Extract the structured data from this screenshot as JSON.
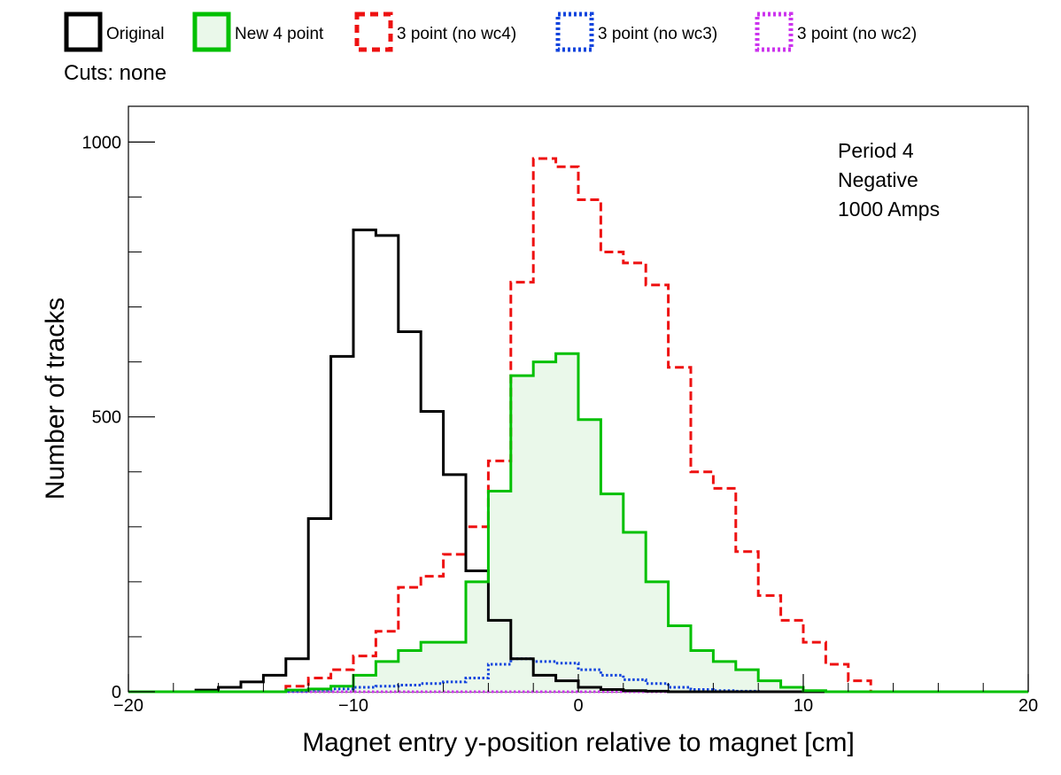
{
  "chart_data": {
    "type": "histogram",
    "xlabel": "Magnet entry y-position relative to magnet [cm]",
    "ylabel": "Number of tracks",
    "xlim": [
      -20,
      20
    ],
    "ylim": [
      0,
      1065
    ],
    "x_ticks": [
      -20,
      -10,
      0,
      10,
      20
    ],
    "x_tick_labels": [
      "−20",
      "−10",
      "0",
      "10",
      "20"
    ],
    "y_ticks": [
      0,
      500,
      1000
    ],
    "y_tick_labels": [
      "0",
      "500",
      "1000"
    ],
    "cuts_text": "Cuts: none",
    "annotation": [
      "Period 4",
      "Negative",
      "1000 Amps"
    ],
    "legend_placement": "top",
    "bin_edges": [
      -17,
      -16,
      -15,
      -14,
      -13,
      -12,
      -11,
      -10,
      -9,
      -8,
      -7,
      -6,
      -5,
      -4,
      -3,
      -2,
      -1,
      0,
      1,
      2,
      3,
      4,
      5,
      6,
      7,
      8,
      9,
      10,
      11,
      12,
      13,
      14
    ],
    "series": [
      {
        "name": "Original",
        "color": "#000000",
        "dash": "solid",
        "fill": "none",
        "values": [
          3,
          8,
          18,
          30,
          60,
          315,
          610,
          840,
          830,
          655,
          510,
          395,
          220,
          130,
          60,
          30,
          20,
          8,
          4,
          2,
          1,
          0,
          0,
          0,
          0,
          0,
          0,
          0,
          0,
          0,
          0
        ]
      },
      {
        "name": "New 4 point",
        "color": "#00c000",
        "dash": "solid",
        "fill": "#eaf8ea",
        "values": [
          0,
          0,
          0,
          0,
          3,
          5,
          10,
          30,
          55,
          75,
          90,
          90,
          200,
          365,
          575,
          600,
          615,
          495,
          360,
          290,
          200,
          120,
          75,
          55,
          40,
          20,
          8,
          2,
          0,
          0,
          0
        ]
      },
      {
        "name": "3 point (no wc4)",
        "color": "#ee1111",
        "dash": "dash",
        "fill": "none",
        "values": [
          0,
          0,
          0,
          0,
          10,
          25,
          40,
          65,
          110,
          190,
          210,
          250,
          300,
          420,
          745,
          970,
          955,
          895,
          800,
          780,
          740,
          590,
          400,
          370,
          255,
          175,
          130,
          90,
          50,
          20,
          0
        ]
      },
      {
        "name": "3 point (no wc3)",
        "color": "#1144dd",
        "dash": "dot",
        "fill": "none",
        "values": [
          0,
          0,
          0,
          0,
          1,
          3,
          5,
          8,
          10,
          12,
          15,
          18,
          25,
          50,
          60,
          55,
          52,
          40,
          30,
          22,
          15,
          8,
          4,
          2,
          1,
          0,
          0,
          0,
          0,
          0,
          0
        ]
      },
      {
        "name": "3 point (no wc2)",
        "color": "#cc33ee",
        "dash": "dot",
        "fill": "none",
        "values": [
          0,
          0,
          0,
          0,
          0,
          0,
          0,
          0,
          0,
          0,
          0,
          0,
          0,
          0,
          0,
          0,
          0,
          0,
          0,
          0,
          0,
          0,
          0,
          0,
          0,
          0,
          0,
          0,
          0,
          0,
          0
        ]
      }
    ],
    "series_overrides_note_free": true
  }
}
